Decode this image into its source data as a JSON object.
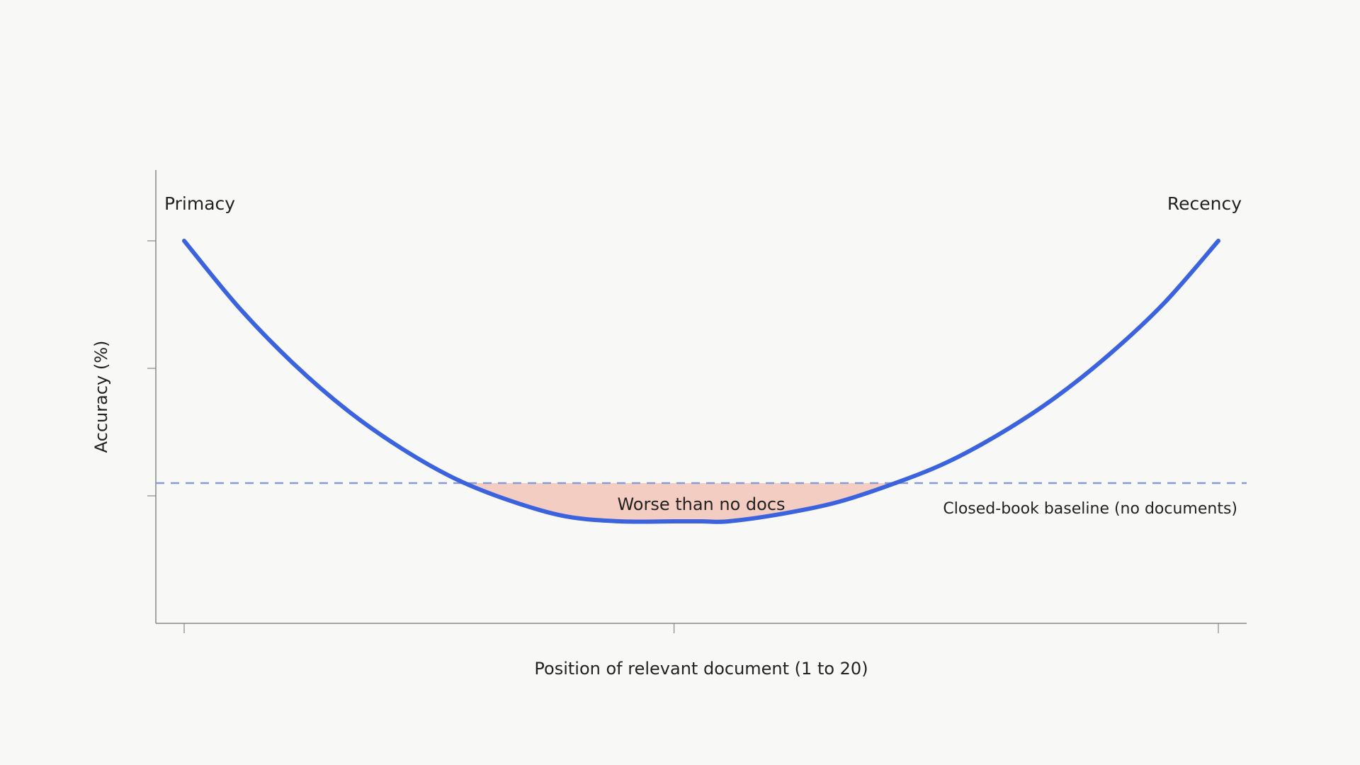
{
  "chart_data": {
    "type": "line",
    "title": "",
    "xlabel": "Position of relevant document (1 to 20)",
    "ylabel": "Accuracy (%)",
    "x_range": [
      1,
      20
    ],
    "y_range": [
      0,
      3
    ],
    "grid": false,
    "x_ticks": [
      1,
      10,
      20
    ],
    "y_ticks": [
      1,
      2,
      3
    ],
    "series": [
      {
        "x": [
          1,
          2,
          3,
          4,
          5,
          6,
          7,
          8,
          9,
          10,
          10.5,
          11,
          12,
          13,
          14,
          15,
          16,
          17,
          18,
          19,
          20
        ],
        "y": [
          3.0,
          2.48,
          2.04,
          1.67,
          1.37,
          1.13,
          0.96,
          0.84,
          0.8,
          0.8,
          0.8,
          0.8,
          0.86,
          0.95,
          1.09,
          1.26,
          1.49,
          1.77,
          2.11,
          2.51,
          3.0
        ]
      }
    ],
    "baseline": {
      "value": 1.1,
      "label": "Closed-book baseline (no documents)"
    },
    "annotations": {
      "left": "Primacy",
      "right": "Recency",
      "shaded": "Worse than no docs"
    },
    "colors": {
      "line": "#3b63dd",
      "baseline": "#8a9bd4",
      "shade": "#f2c9bf",
      "axis": "#888888"
    }
  }
}
